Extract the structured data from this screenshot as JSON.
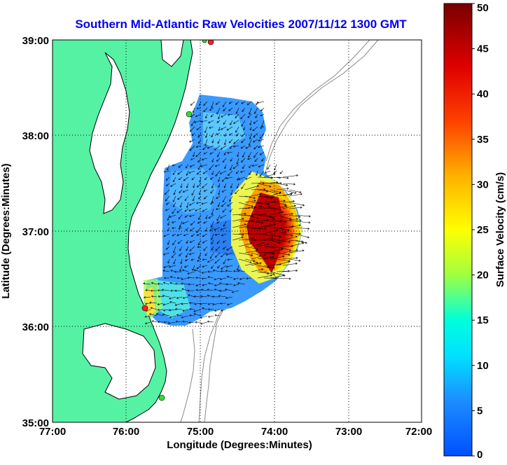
{
  "chart_data": {
    "type": "heatmap",
    "title": "Southern Mid-Atlantic Raw Velocities 2007/11/12 1300 GMT",
    "xlabel": "Longitude (Degrees:Minutes)",
    "ylabel": "Latitude (Degrees:Minutes)",
    "colorbar_label": "Surface Velocity (cm/s)",
    "x_ticks": [
      "77:00",
      "76:00",
      "75:00",
      "74:00",
      "73:00",
      "72:00"
    ],
    "y_ticks": [
      "39:00",
      "38:00",
      "37:00",
      "36:00",
      "35:00"
    ],
    "xlim": [
      -77,
      -72
    ],
    "ylim": [
      35,
      39
    ],
    "colorbar_range": [
      0,
      50
    ],
    "colorbar_ticks": [
      "50",
      "45",
      "40",
      "35",
      "30",
      "25",
      "20",
      "15",
      "10",
      "5",
      "0"
    ],
    "grid": true,
    "colors": {
      "title": "#0000ee",
      "land": "#55f2a4",
      "coast": "#000000",
      "bathymetry": "#8a8a8a",
      "station_active": "#ff2020",
      "station_inactive": "#33dd33"
    }
  }
}
